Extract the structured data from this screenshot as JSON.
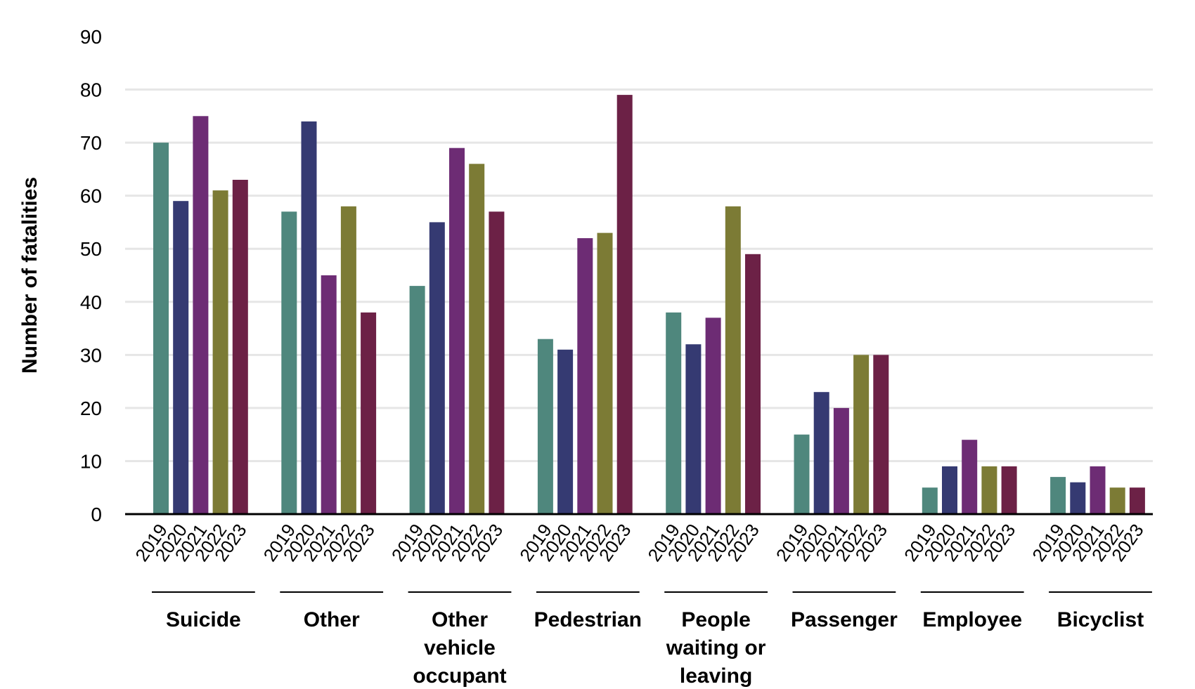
{
  "chart_data": {
    "type": "bar",
    "ylabel": "Number of fatalities",
    "ylim": [
      0,
      90
    ],
    "yticks": [
      0,
      10,
      20,
      30,
      40,
      50,
      60,
      70,
      80,
      90
    ],
    "grid": true,
    "legend": "none",
    "categories": [
      "Suicide",
      "Other",
      "Other vehicle occupant",
      "Pedestrian",
      "People waiting or leaving",
      "Passenger",
      "Employee",
      "Bicyclist"
    ],
    "category_label_lines": [
      [
        "Suicide"
      ],
      [
        "Other"
      ],
      [
        "Other",
        "vehicle",
        "occupant"
      ],
      [
        "Pedestrian"
      ],
      [
        "People",
        "waiting or",
        "leaving"
      ],
      [
        "Passenger"
      ],
      [
        "Employee"
      ],
      [
        "Bicyclist"
      ]
    ],
    "series_colors": [
      "#4f877d",
      "#353a72",
      "#6d2c74",
      "#7c7b35",
      "#6c2146"
    ],
    "series": [
      {
        "name": "2019",
        "values": [
          70,
          57,
          43,
          33,
          38,
          15,
          5,
          7
        ]
      },
      {
        "name": "2020",
        "values": [
          59,
          74,
          55,
          31,
          32,
          23,
          9,
          6
        ]
      },
      {
        "name": "2021",
        "values": [
          75,
          45,
          69,
          52,
          37,
          20,
          14,
          9
        ]
      },
      {
        "name": "2022",
        "values": [
          61,
          58,
          66,
          53,
          58,
          30,
          9,
          5
        ]
      },
      {
        "name": "2023",
        "values": [
          63,
          38,
          57,
          79,
          49,
          30,
          9,
          5
        ]
      }
    ]
  }
}
